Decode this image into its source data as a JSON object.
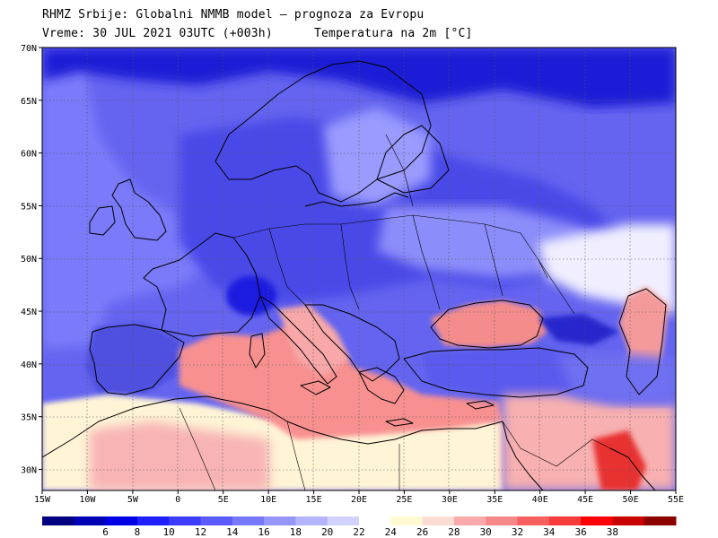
{
  "header": {
    "line1": "RHMZ Srbije: Globalni NMMB model — prognoza za Evropu",
    "line2": "Vreme: 30 JUL 2021 03UTC (+003h)",
    "line3": "Temperatura na 2m [°C]"
  },
  "map": {
    "region": "Europe",
    "lon_range": [
      -15,
      55
    ],
    "lat_range": [
      28,
      70
    ],
    "lat_labels": [
      "30N",
      "35N",
      "40N",
      "45N",
      "50N",
      "55N",
      "60N",
      "65N",
      "70N"
    ],
    "lat_values": [
      30,
      35,
      40,
      45,
      50,
      55,
      60,
      65,
      70
    ],
    "lon_labels": [
      "15W",
      "10W",
      "5W",
      "0",
      "5E",
      "10E",
      "15E",
      "20E",
      "25E",
      "30E",
      "35E",
      "40E",
      "45E",
      "50E",
      "55E"
    ],
    "lon_values": [
      -15,
      -10,
      -5,
      0,
      5,
      10,
      15,
      20,
      25,
      30,
      35,
      40,
      45,
      50,
      55
    ]
  },
  "colorbar": {
    "labels": [
      "6",
      "8",
      "10",
      "12",
      "14",
      "16",
      "18",
      "20",
      "22",
      "24",
      "26",
      "28",
      "30",
      "32",
      "34",
      "36",
      "38"
    ],
    "colors": [
      "#000080",
      "#0000b4",
      "#0000e6",
      "#1e1eff",
      "#3c3cff",
      "#5a5aff",
      "#7878ff",
      "#9696ff",
      "#b4b4ff",
      "#d2d2ff",
      "#ffffff",
      "#fffad2",
      "#fadcd2",
      "#faaaaa",
      "#f88888",
      "#f86060",
      "#f83c3c",
      "#ff0000",
      "#c80000",
      "#8c0000"
    ]
  }
}
